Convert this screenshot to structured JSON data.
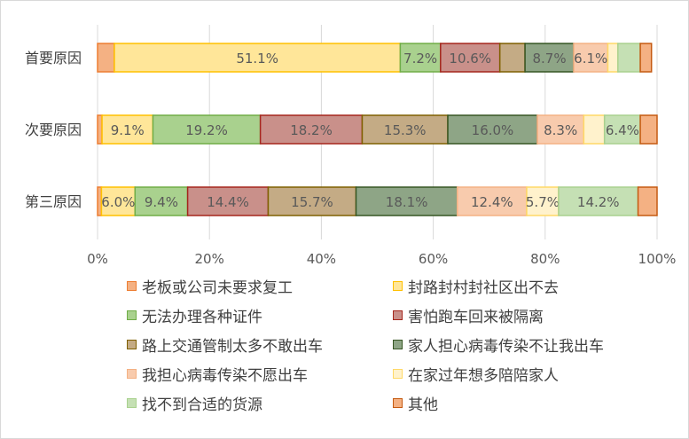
{
  "chart_data": {
    "type": "bar",
    "orientation": "horizontal",
    "stacked": "percent",
    "categories": [
      "首要原因",
      "次要原因",
      "第三原因"
    ],
    "x_ticks": [
      "0%",
      "20%",
      "40%",
      "60%",
      "80%",
      "100%"
    ],
    "xlim": [
      0,
      100
    ],
    "grid": "vertical",
    "legend_position": "bottom",
    "series": [
      {
        "name": "老板或公司未要求复工",
        "values": [
          3.0,
          0.8,
          0.7
        ],
        "labels": [
          "",
          "",
          ""
        ],
        "color": "#f4b183",
        "border": "#ed7d31"
      },
      {
        "name": "封路封村封社区出不去",
        "values": [
          51.1,
          9.1,
          6.0
        ],
        "labels": [
          "51.1%",
          "9.1%",
          "6.0%"
        ],
        "color": "#ffe699",
        "border": "#ffc000"
      },
      {
        "name": "无法办理各种证件",
        "values": [
          7.2,
          19.2,
          9.4
        ],
        "labels": [
          "7.2%",
          "19.2%",
          "9.4%"
        ],
        "color": "#a9d18e",
        "border": "#70ad47"
      },
      {
        "name": "害怕跑车回来被隔离",
        "values": [
          10.6,
          18.2,
          14.4
        ],
        "labels": [
          "10.6%",
          "18.2%",
          "14.4%"
        ],
        "color": "#c9908a",
        "border": "#a5261c"
      },
      {
        "name": "路上交通管制太多不敢出车",
        "values": [
          4.5,
          15.3,
          15.7
        ],
        "labels": [
          "",
          "15.3%",
          "15.7%"
        ],
        "color": "#c4ab85",
        "border": "#7f6000"
      },
      {
        "name": "家人担心病毒传染不让我出车",
        "values": [
          8.7,
          16.0,
          18.1
        ],
        "labels": [
          "8.7%",
          "16.0%",
          "18.1%"
        ],
        "color": "#8ea586",
        "border": "#375623"
      },
      {
        "name": "我担心病毒传染不愿出车",
        "values": [
          6.1,
          8.3,
          12.4
        ],
        "labels": [
          "6.1%",
          "8.3%",
          "12.4%"
        ],
        "color": "#f8cbad",
        "border": "#f4b183"
      },
      {
        "name": "在家过年想多陪陪家人",
        "values": [
          1.8,
          3.7,
          5.7
        ],
        "labels": [
          "",
          "",
          "5.7%"
        ],
        "color": "#fff2cc",
        "border": "#ffd966"
      },
      {
        "name": "找不到合适的货源",
        "values": [
          4.0,
          6.4,
          14.2
        ],
        "labels": [
          "",
          "6.4%",
          "14.2%"
        ],
        "color": "#c5e0b4",
        "border": "#a9d18e"
      },
      {
        "name": "其他",
        "values": [
          2.0,
          3.0,
          3.4
        ],
        "labels": [
          "",
          "",
          ""
        ],
        "color": "#f4b183",
        "border": "#c55a11"
      }
    ]
  }
}
